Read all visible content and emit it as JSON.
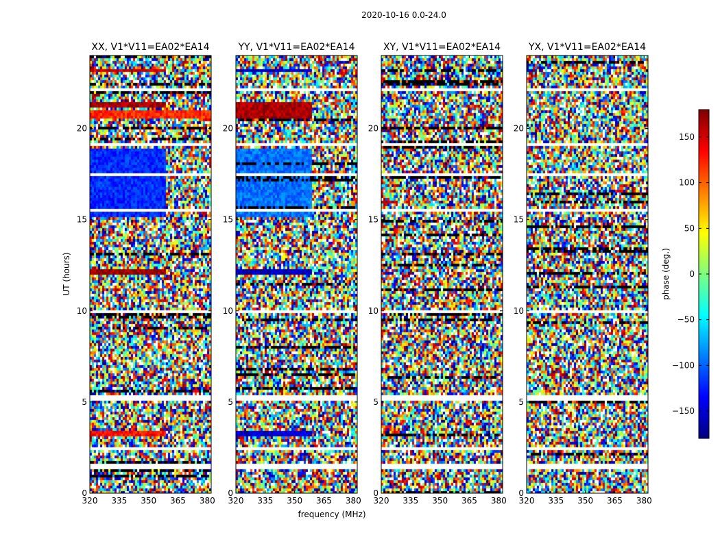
{
  "figure": {
    "suptitle": "2020-10-16 0.0-24.0",
    "xlabel": "frequency (MHz)",
    "ylabel": "UT (hours)"
  },
  "colorbar": {
    "label": "phase (deg.)",
    "range": [
      -180,
      180
    ],
    "ticks": [
      150,
      100,
      50,
      0,
      -50,
      -100,
      -150
    ],
    "tick_labels": [
      "150",
      "100",
      "50",
      "0",
      "−50",
      "−100",
      "−150"
    ],
    "colormap": "jet",
    "stops": [
      "#00007f",
      "#0000ff",
      "#007fff",
      "#00ffff",
      "#7fff7f",
      "#ffff00",
      "#ff7f00",
      "#ff0000",
      "#7f0000"
    ]
  },
  "chart_data": [
    {
      "type": "heatmap",
      "title": "XX, V1*V11=EA02*EA14",
      "x_range": [
        320,
        382
      ],
      "y_range": [
        0,
        24
      ],
      "x_ticks": [
        320,
        335,
        350,
        365,
        380
      ],
      "x_tick_labels": [
        "320",
        "335",
        "350",
        "365",
        "380"
      ],
      "y_ticks": [
        0,
        5,
        10,
        15,
        20
      ],
      "y_tick_labels": [
        "0",
        "5",
        "10",
        "15",
        "20"
      ],
      "coherent_bands": [
        {
          "t0": 15.2,
          "t1": 18.9,
          "f0": 320,
          "f1": 359,
          "phase": -120
        },
        {
          "t0": 21.1,
          "t1": 21.5,
          "f0": 320,
          "f1": 359,
          "phase": 165
        },
        {
          "t0": 20.5,
          "t1": 21.0,
          "f0": 320,
          "f1": 382,
          "phase": 120
        },
        {
          "t0": 12.0,
          "t1": 12.35,
          "f0": 320,
          "f1": 359,
          "phase": 170
        },
        {
          "t0": 3.1,
          "t1": 3.4,
          "f0": 320,
          "f1": 359,
          "phase": 130
        },
        {
          "t0": 23.1,
          "t1": 23.3,
          "f0": 320,
          "f1": 359,
          "phase": 150
        }
      ],
      "blank_rows": [
        [
          1.3,
          1.65
        ],
        [
          2.3,
          2.55
        ],
        [
          5.0,
          5.3
        ],
        [
          15.4,
          15.55
        ],
        [
          17.45,
          17.55
        ],
        [
          19.1,
          19.25
        ],
        [
          22.0,
          22.15
        ],
        [
          9.9,
          10.0
        ]
      ]
    },
    {
      "type": "heatmap",
      "title": "YY, V1*V11=EA02*EA14",
      "x_range": [
        320,
        382
      ],
      "y_range": [
        0,
        24
      ],
      "x_ticks": [
        320,
        335,
        350,
        365,
        380
      ],
      "x_tick_labels": [
        "320",
        "335",
        "350",
        "365",
        "380"
      ],
      "y_ticks": [
        0,
        5,
        10,
        15,
        20
      ],
      "y_tick_labels": [
        "0",
        "5",
        "10",
        "15",
        "20"
      ],
      "coherent_bands": [
        {
          "t0": 15.2,
          "t1": 18.9,
          "f0": 320,
          "f1": 359,
          "phase": -95
        },
        {
          "t0": 20.6,
          "t1": 21.5,
          "f0": 320,
          "f1": 359,
          "phase": 165
        },
        {
          "t0": 12.0,
          "t1": 12.35,
          "f0": 320,
          "f1": 359,
          "phase": -160
        },
        {
          "t0": 3.1,
          "t1": 3.4,
          "f0": 320,
          "f1": 359,
          "phase": -150
        },
        {
          "t0": 23.1,
          "t1": 23.3,
          "f0": 320,
          "f1": 359,
          "phase": -150
        }
      ],
      "blank_rows": [
        [
          1.3,
          1.65
        ],
        [
          2.3,
          2.55
        ],
        [
          5.0,
          5.3
        ],
        [
          15.4,
          15.55
        ],
        [
          17.45,
          17.55
        ],
        [
          19.1,
          19.25
        ],
        [
          22.0,
          22.15
        ],
        [
          9.9,
          10.0
        ]
      ]
    },
    {
      "type": "heatmap",
      "title": "XY, V1*V11=EA02*EA14",
      "x_range": [
        320,
        382
      ],
      "y_range": [
        0,
        24
      ],
      "x_ticks": [
        320,
        335,
        350,
        365,
        380
      ],
      "x_tick_labels": [
        "320",
        "335",
        "350",
        "365",
        "380"
      ],
      "y_ticks": [
        0,
        5,
        10,
        15,
        20
      ],
      "y_tick_labels": [
        "0",
        "5",
        "10",
        "15",
        "20"
      ],
      "coherent_bands": [],
      "blank_rows": [
        [
          1.3,
          1.65
        ],
        [
          2.3,
          2.55
        ],
        [
          5.0,
          5.3
        ],
        [
          15.4,
          15.55
        ],
        [
          17.45,
          17.55
        ],
        [
          19.1,
          19.25
        ],
        [
          22.0,
          22.15
        ],
        [
          9.9,
          10.0
        ]
      ]
    },
    {
      "type": "heatmap",
      "title": "YX, V1*V11=EA02*EA14",
      "x_range": [
        320,
        382
      ],
      "y_range": [
        0,
        24
      ],
      "x_ticks": [
        320,
        335,
        350,
        365,
        380
      ],
      "x_tick_labels": [
        "320",
        "335",
        "350",
        "365",
        "380"
      ],
      "y_ticks": [
        0,
        5,
        10,
        15,
        20
      ],
      "y_tick_labels": [
        "0",
        "5",
        "10",
        "15",
        "20"
      ],
      "coherent_bands": [],
      "blank_rows": [
        [
          1.3,
          1.65
        ],
        [
          2.3,
          2.55
        ],
        [
          5.0,
          5.3
        ],
        [
          15.4,
          15.55
        ],
        [
          17.45,
          17.55
        ],
        [
          19.1,
          19.25
        ],
        [
          22.0,
          22.15
        ],
        [
          9.9,
          10.0
        ]
      ]
    }
  ]
}
